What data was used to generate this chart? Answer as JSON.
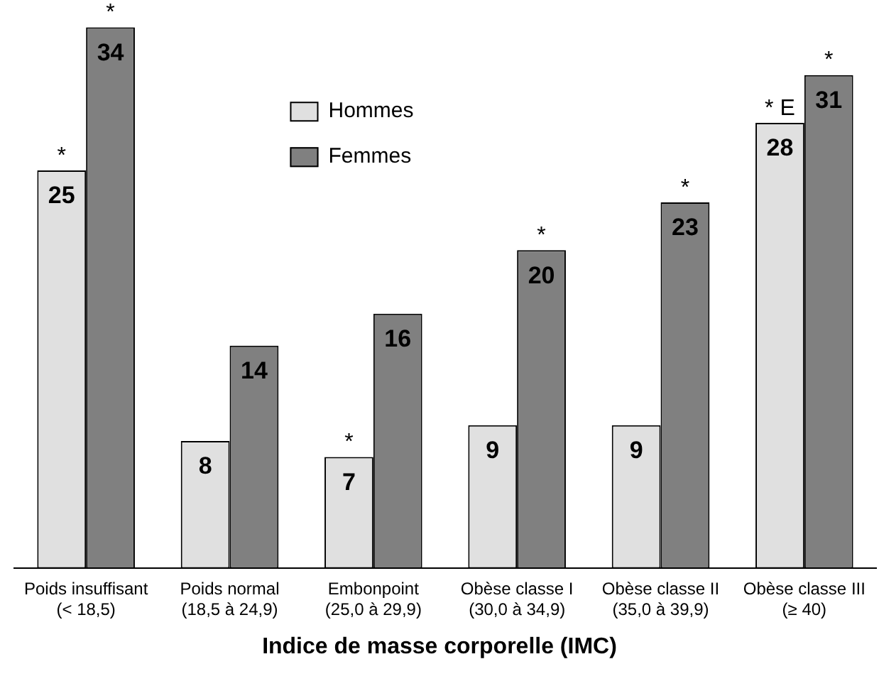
{
  "chart_data": {
    "type": "bar",
    "xlabel": "Indice de masse corporelle (IMC)",
    "categories": [
      "Poids insuffisant\n(< 18,5)",
      "Poids normal\n(18,5 à 24,9)",
      "Embonpoint\n(25,0 à 29,9)",
      "Obèse classe I\n(30,0 à 34,9)",
      "Obèse classe II\n(35,0 à 39,9)",
      "Obèse classe III\n(≥ 40)"
    ],
    "series": [
      {
        "name": "Hommes",
        "color": "#e0e0e0",
        "values": [
          25,
          8,
          7,
          9,
          9,
          28
        ]
      },
      {
        "name": "Femmes",
        "color": "#808080",
        "values": [
          34,
          14,
          16,
          20,
          23,
          31
        ]
      }
    ],
    "tick_labels": "x",
    "grid": false,
    "legend": "top center",
    "data_labels": true,
    "annotations": [
      {
        "text": "*",
        "x": "Poids insuffisant\n(< 18,5)",
        "y": 25
      },
      {
        "text": "*",
        "x": "Poids insuffisant\n(< 18,5)",
        "y": 34
      },
      {
        "text": "*",
        "x": "Embonpoint\n(25,0 à 29,9)",
        "y": 7
      },
      {
        "text": "*",
        "x": "Obèse classe I\n(30,0 à 34,9)",
        "y": 20
      },
      {
        "text": "*",
        "x": "Obèse classe II\n(35,0 à 39,9)",
        "y": 23
      },
      {
        "text": "* E",
        "x": "Obèse classe III\n(≥ 40)",
        "y": 28
      },
      {
        "text": "*",
        "x": "Obèse classe III\n(≥ 40)",
        "y": 31
      }
    ]
  }
}
